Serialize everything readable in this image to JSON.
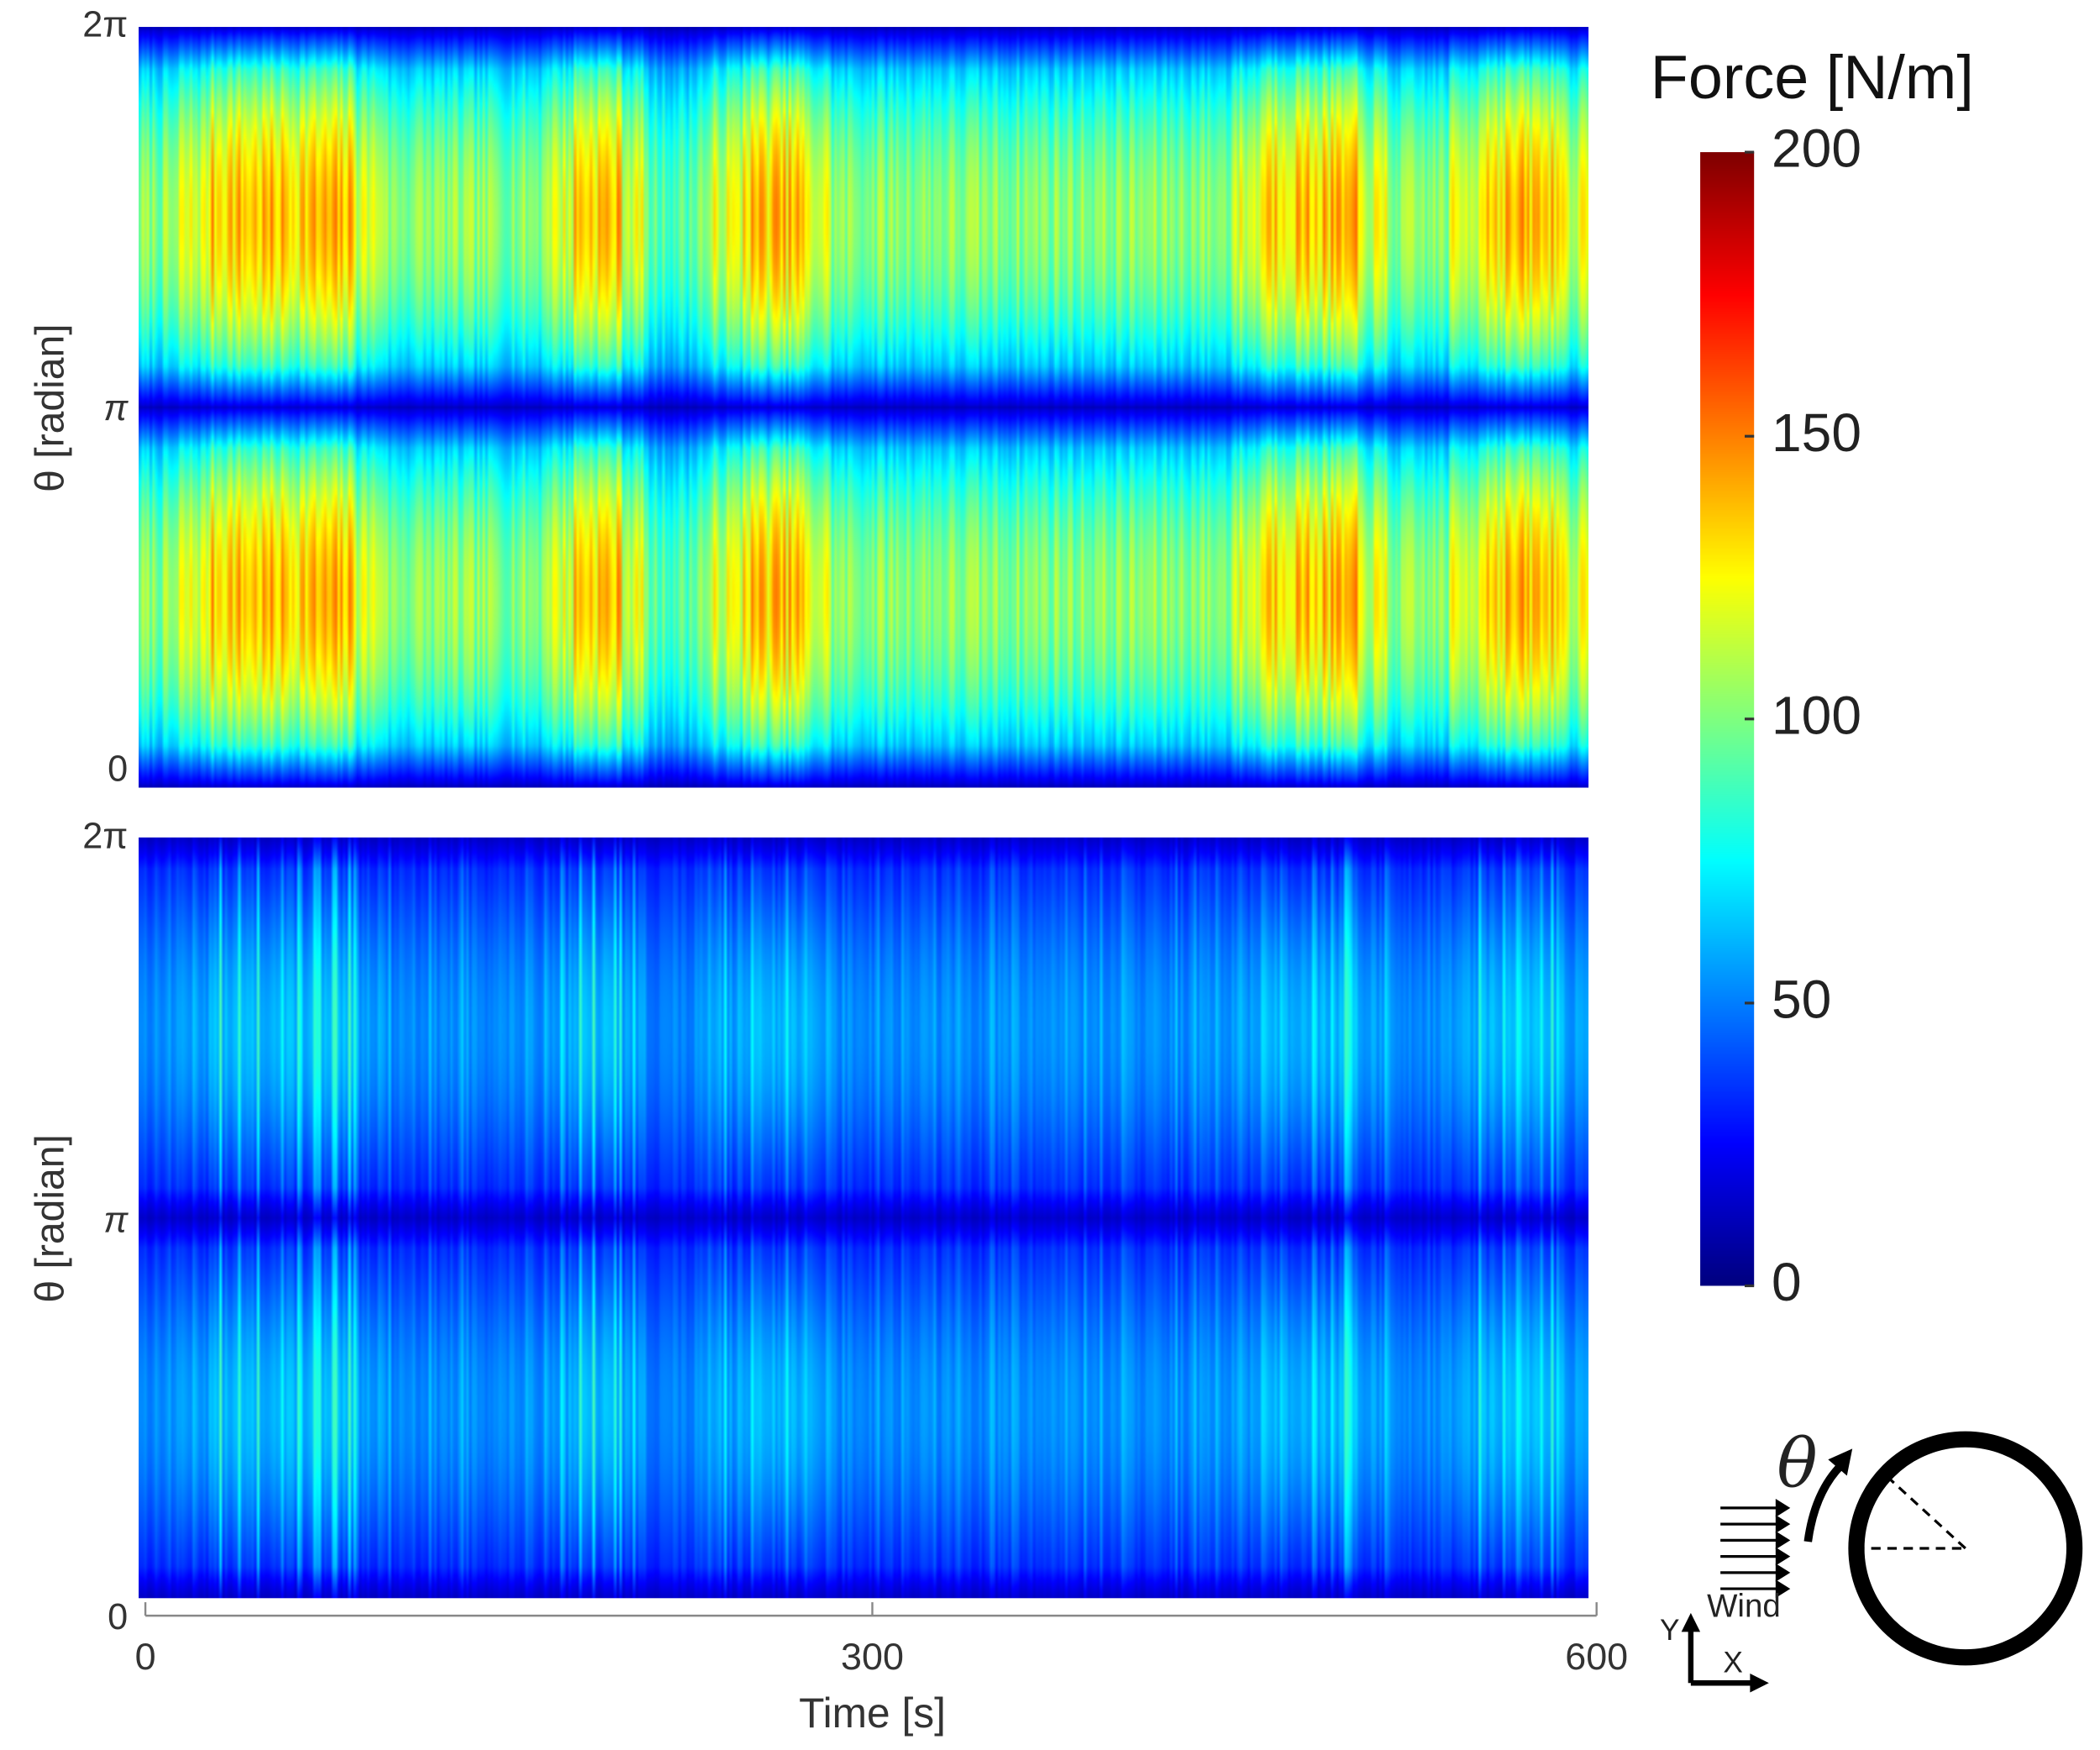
{
  "chart_data": [
    {
      "type": "heatmap",
      "panel": "top",
      "x": {
        "label": "",
        "range": [
          0,
          600
        ]
      },
      "y": {
        "label": "θ [radian]",
        "range_radians": [
          0,
          6.2832
        ],
        "tick_labels": [
          "0",
          "π",
          "2π"
        ]
      },
      "value_range": [
        0,
        200
      ],
      "colormap": "jet",
      "description_bands": {
        "theta_high_force_centers": [
          "π/2",
          "3π/2"
        ],
        "theta_low_force": [
          "0",
          "π",
          "2π"
        ],
        "time_high_activity_segments_s": [
          [
            28,
            90
          ],
          [
            180,
            200
          ],
          [
            250,
            275
          ],
          [
            465,
            505
          ],
          [
            555,
            590
          ]
        ]
      }
    },
    {
      "type": "heatmap",
      "panel": "bottom",
      "x": {
        "label": "Time [s]",
        "range": [
          0,
          600
        ],
        "tick_labels": [
          "0",
          "300",
          "600"
        ],
        "ticks": [
          0,
          300,
          600
        ]
      },
      "y": {
        "label": "θ [radian]",
        "range_radians": [
          0,
          6.2832
        ],
        "tick_labels": [
          "0",
          "π",
          "2π"
        ]
      },
      "value_range": [
        0,
        200
      ],
      "colormap": "jet"
    }
  ],
  "colorbar": {
    "title": "Force [N/m]",
    "ticks": [
      0,
      50,
      100,
      150,
      200
    ],
    "tick_labels": [
      "0",
      "50",
      "100",
      "150",
      "200"
    ]
  },
  "inset": {
    "theta_symbol": "θ",
    "wind_label": "Wind",
    "axis_x": "X",
    "axis_y": "Y"
  }
}
